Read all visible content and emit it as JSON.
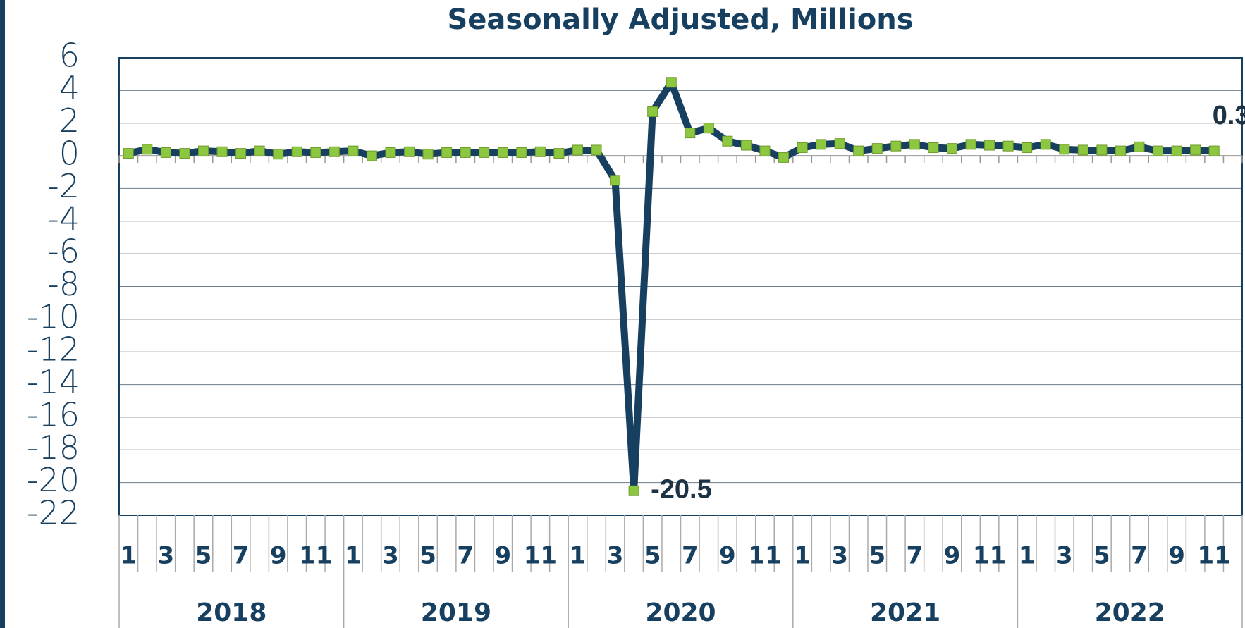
{
  "chart_data": {
    "type": "line",
    "title": "Seasonally Adjusted, Millions",
    "categories": [
      "1",
      null,
      "3",
      null,
      "5",
      null,
      "7",
      null,
      "9",
      null,
      "11",
      null,
      "1",
      null,
      "3",
      null,
      "5",
      null,
      "7",
      null,
      "9",
      null,
      "11",
      null,
      "1",
      null,
      "3",
      null,
      "5",
      null,
      "7",
      null,
      "9",
      null,
      "11",
      null,
      "1",
      null,
      "3",
      null,
      "5",
      null,
      "7",
      null,
      "9",
      null,
      "11",
      null,
      "1",
      null,
      "3",
      null,
      "5",
      null,
      "7",
      null,
      "9",
      null,
      "11"
    ],
    "year_groups": [
      "2018",
      "2019",
      "2020",
      "2021",
      "2022"
    ],
    "series": [
      {
        "color": "#173f5f",
        "marker_color": "#8dc63f",
        "values": [
          0.15,
          0.4,
          0.2,
          0.15,
          0.3,
          0.25,
          0.15,
          0.3,
          0.1,
          0.25,
          0.2,
          0.25,
          0.3,
          0,
          0.2,
          0.25,
          0.1,
          0.2,
          0.2,
          0.2,
          0.2,
          0.2,
          0.25,
          0.15,
          0.35,
          0.35,
          -1.5,
          -20.5,
          2.7,
          4.5,
          1.4,
          1.7,
          0.9,
          0.65,
          0.3,
          -0.1,
          0.5,
          0.7,
          0.75,
          0.3,
          0.45,
          0.6,
          0.7,
          0.5,
          0.45,
          0.7,
          0.65,
          0.6,
          0.5,
          0.7,
          0.4,
          0.35,
          0.35,
          0.3,
          0.55,
          0.3,
          0.3,
          0.35,
          0.3
        ]
      }
    ],
    "data_labels": [
      27,
      58
    ],
    "ylim": [
      -22,
      6
    ],
    "yticks": [
      -22,
      -20,
      -18,
      -16,
      -14,
      -12,
      -10,
      -8,
      -6,
      -4,
      -2,
      0,
      2,
      4,
      6
    ],
    "grid": true
  }
}
